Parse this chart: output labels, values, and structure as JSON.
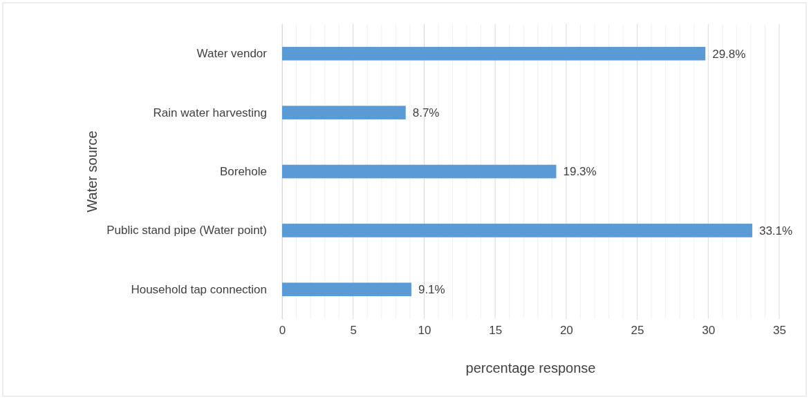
{
  "chart_data": {
    "type": "bar",
    "orientation": "horizontal",
    "xlabel": "percentage response",
    "ylabel": "Water source",
    "categories": [
      "Water vendor",
      "Rain water harvesting",
      "Borehole",
      "Public stand pipe (Water point)",
      "Household tap connection"
    ],
    "values": [
      29.8,
      8.7,
      19.3,
      33.1,
      9.1
    ],
    "color": "#5b9bd5",
    "value_labels": [
      "29.8%",
      "8.7%",
      "19.3%",
      "33.1%",
      "9.1%"
    ],
    "xlim": [
      0,
      35
    ],
    "xticks": [
      0,
      {
        "value": 1,
        "label": null
      },
      {
        "value": 2,
        "label": null
      },
      {
        "value": 3,
        "label": null
      },
      {
        "value": 4,
        "label": null
      },
      5,
      {
        "value": 6,
        "label": null
      },
      {
        "value": 7,
        "label": null
      },
      {
        "value": 8,
        "label": null
      },
      {
        "value": 9,
        "label": null
      },
      10,
      {
        "value": 11,
        "label": null
      },
      {
        "value": 12,
        "label": null
      },
      {
        "value": 13,
        "label": null
      },
      {
        "value": 14,
        "label": null
      },
      15,
      {
        "value": 16,
        "label": null
      },
      {
        "value": 17,
        "label": null
      },
      {
        "value": 18,
        "label": null
      },
      {
        "value": 19,
        "label": null
      },
      20,
      {
        "value": 21,
        "label": null
      },
      {
        "value": 22,
        "label": null
      },
      {
        "value": 23,
        "label": null
      },
      {
        "value": 24,
        "label": null
      },
      25,
      {
        "value": 26,
        "label": null
      },
      {
        "value": 27,
        "label": null
      },
      {
        "value": 28,
        "label": null
      },
      {
        "value": 29,
        "label": null
      },
      30,
      {
        "value": 31,
        "label": null
      },
      {
        "value": 32,
        "label": null
      },
      {
        "value": 33,
        "label": null
      },
      {
        "value": 34,
        "label": null
      },
      35
    ],
    "grid": "x"
  }
}
